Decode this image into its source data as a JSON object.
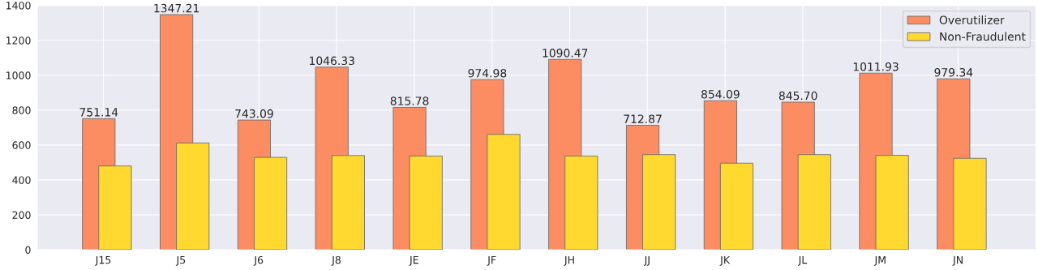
{
  "chart_data": {
    "type": "bar",
    "categories": [
      "J15",
      "J5",
      "J6",
      "J8",
      "JE",
      "JF",
      "JH",
      "JJ",
      "JK",
      "JL",
      "JM",
      "JN"
    ],
    "series": [
      {
        "name": "Overutilizer",
        "color": "#fc8d62",
        "values": [
          751.14,
          1347.21,
          743.09,
          1046.33,
          815.78,
          974.98,
          1090.47,
          712.87,
          854.09,
          845.7,
          1011.93,
          979.34
        ],
        "value_labels": [
          "751.14",
          "1347.21",
          "743.09",
          "1046.33",
          "815.78",
          "974.98",
          "1090.47",
          "712.87",
          "854.09",
          "845.70",
          "1011.93",
          "979.34"
        ]
      },
      {
        "name": "Non-Fraudulent",
        "color": "#ffd92f",
        "values": [
          480,
          612,
          529,
          540,
          537,
          661,
          537,
          545,
          496,
          545,
          541,
          524
        ]
      }
    ],
    "ylim": [
      0,
      1400
    ],
    "yticks": [
      0,
      200,
      400,
      600,
      800,
      1000,
      1200,
      1400
    ],
    "grid": true,
    "legend": "top right"
  }
}
